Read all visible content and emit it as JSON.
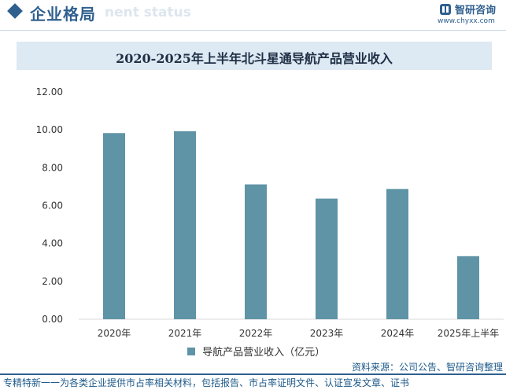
{
  "header": {
    "section_title": "企业格局",
    "section_subtitle": "nent status",
    "brand_name": "智研咨询",
    "brand_url": "www.chyxx.com"
  },
  "colors": {
    "accent": "#2f5f8f",
    "bar": "#5f93a6",
    "title_band": "#dde9f3"
  },
  "chart_data": {
    "type": "bar",
    "title": "2020-2025年上半年北斗星通导航产品营业收入",
    "categories": [
      "2020年",
      "2021年",
      "2022年",
      "2023年",
      "2024年",
      "2025年上半年"
    ],
    "series": [
      {
        "name": "导航产品营业收入（亿元）",
        "values": [
          9.83,
          9.93,
          7.12,
          6.37,
          6.88,
          3.33
        ]
      }
    ],
    "yticks": [
      "0.00",
      "2.00",
      "4.00",
      "6.00",
      "8.00",
      "10.00",
      "12.00"
    ],
    "ylim": [
      0,
      12
    ],
    "grid": false,
    "legend_position": "bottom"
  },
  "source": "资料来源：公司公告、智研咨询整理",
  "footer": "专精特新一一为各类企业提供市占率相关材料，包括报告、市占率证明文件、认证宣发文章、证书"
}
